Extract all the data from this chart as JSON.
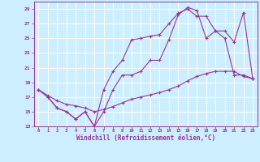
{
  "xlabel": "Windchill (Refroidissement éolien,°C)",
  "xlim": [
    -0.5,
    23.5
  ],
  "ylim": [
    13,
    30
  ],
  "xticks": [
    0,
    1,
    2,
    3,
    4,
    5,
    6,
    7,
    8,
    9,
    10,
    11,
    12,
    13,
    14,
    15,
    16,
    17,
    18,
    19,
    20,
    21,
    22,
    23
  ],
  "yticks": [
    13,
    15,
    17,
    19,
    21,
    23,
    25,
    27,
    29
  ],
  "bg_color": "#cceeff",
  "line_color": "#993399",
  "grid_color": "#ffffff",
  "line1_x": [
    0,
    1,
    2,
    3,
    4,
    5,
    6,
    7,
    8,
    9,
    10,
    11,
    12,
    13,
    14,
    15,
    16,
    17,
    18,
    19,
    20,
    21,
    22,
    23
  ],
  "line1_y": [
    18,
    17,
    15.5,
    15,
    14,
    15,
    13,
    15,
    18,
    20,
    20,
    20.5,
    22,
    22,
    24.8,
    28.2,
    29.2,
    28.8,
    25,
    26,
    25,
    20,
    20,
    19.5
  ],
  "line2_x": [
    0,
    1,
    2,
    3,
    4,
    5,
    6,
    7,
    8,
    9,
    10,
    11,
    12,
    13,
    14,
    15,
    16,
    17,
    18,
    19,
    20,
    21,
    22,
    23
  ],
  "line2_y": [
    18,
    17,
    15.5,
    15,
    14,
    15,
    13,
    18,
    20.5,
    22,
    24.8,
    25,
    25.3,
    25.5,
    27,
    28.4,
    29,
    28,
    28,
    26,
    26,
    24.5,
    28.5,
    19.5
  ],
  "line3_x": [
    0,
    1,
    2,
    3,
    4,
    5,
    6,
    7,
    8,
    9,
    10,
    11,
    12,
    13,
    14,
    15,
    16,
    17,
    18,
    19,
    20,
    21,
    22,
    23
  ],
  "line3_y": [
    18,
    17.2,
    16.5,
    16,
    15.8,
    15.5,
    15,
    15.3,
    15.7,
    16.2,
    16.7,
    17,
    17.3,
    17.6,
    18,
    18.5,
    19.2,
    19.8,
    20.2,
    20.5,
    20.5,
    20.5,
    19.8,
    19.5
  ]
}
